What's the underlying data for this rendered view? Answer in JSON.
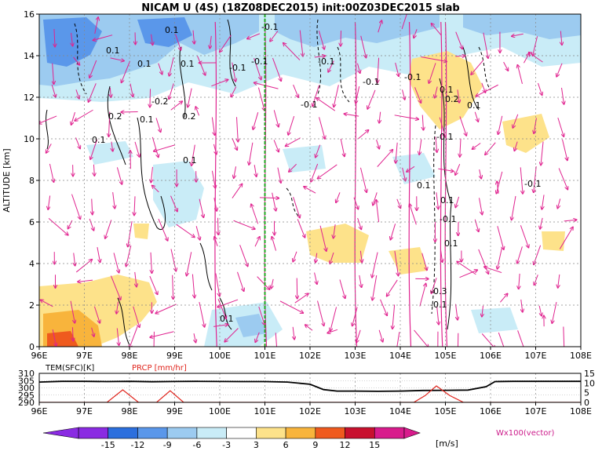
{
  "title": "NICAM U (4S) (18Z08DEC2015) init:00Z03DEC2015 slab",
  "chart_data": [
    {
      "type": "heatmap",
      "title": "NICAM U (4S) (18Z08DEC2015) init:00Z03DEC2015 slab",
      "ylabel": "ALTITUDE [km]",
      "xlim": [
        96,
        108
      ],
      "ylim": [
        0,
        16
      ],
      "x_ticks": [
        "96E",
        "97E",
        "98E",
        "99E",
        "100E",
        "101E",
        "102E",
        "103E",
        "104E",
        "105E",
        "106E",
        "107E",
        "108E"
      ],
      "y_ticks": [
        "0",
        "2",
        "4",
        "6",
        "8",
        "10",
        "12",
        "14",
        "16"
      ],
      "grid": true,
      "marker_line_x": 101,
      "contour_labels": [
        "-0.1",
        "0.1",
        "0.1",
        "0.1",
        "0.1",
        "-0.1",
        "-0.1",
        "-0.2",
        "0.2",
        "0.1",
        "0.2",
        "0.1",
        "-0.1",
        "-0.1",
        "-0.1",
        "-0.1",
        "0.2",
        "0.1",
        "0.1",
        "0.1",
        "-0.1",
        "-0.1",
        "0.1",
        "-0.1",
        "0.1",
        "0.1",
        "-0.3",
        "-0.1",
        "0.1"
      ],
      "colors": {
        "-15": "#8a2be2",
        "-12": "#2c6fde",
        "-9": "#5a97ea",
        "-6": "#9ccbf0",
        "-3": "#c9ecf7",
        "3": "#fde28a",
        "6": "#f8b43c",
        "9": "#ef5a1e",
        "12": "#c8102e",
        "15": "#d81b8c"
      },
      "vector_color": "#e0238f",
      "vector_label": "Wx100(vector)"
    },
    {
      "type": "line",
      "xlim": [
        96,
        108
      ],
      "x_ticks": [
        "96E",
        "97E",
        "98E",
        "99E",
        "100E",
        "101E",
        "102E",
        "103E",
        "104E",
        "105E",
        "106E",
        "107E",
        "108E"
      ],
      "left_axis_label": "TEM(SFC)[K]",
      "left_ticks": [
        "290",
        "295",
        "300",
        "305",
        "310"
      ],
      "left_ylim": [
        290,
        310
      ],
      "right_axis_label": "PRCP [mm/hr]",
      "right_ticks": [
        "0",
        "5",
        "10",
        "15"
      ],
      "right_ylim": [
        0,
        15
      ],
      "series": [
        {
          "name": "TEM(SFC)[K]",
          "color": "#000000",
          "x": [
            96,
            96.5,
            97,
            97.5,
            98,
            98.5,
            99,
            99.5,
            100,
            100.5,
            101,
            101.5,
            102,
            102.3,
            102.6,
            103,
            103.5,
            104,
            104.5,
            105,
            105.5,
            105.9,
            106.1,
            106.5,
            107,
            107.5,
            108
          ],
          "values": [
            304,
            304.5,
            304.5,
            304.3,
            304.5,
            304.2,
            304.4,
            304.5,
            304.4,
            304.3,
            304.3,
            304,
            302.5,
            298.8,
            297.8,
            297.8,
            297.6,
            297.8,
            298.2,
            298.3,
            298.5,
            300.8,
            304.3,
            304.5,
            304.5,
            304.5,
            304.5
          ]
        },
        {
          "name": "PRCP [mm/hr]",
          "color": "#e0231b",
          "x": [
            96,
            97.2,
            97.5,
            97.85,
            98.2,
            98.5,
            98.6,
            98.9,
            99.2,
            99.5,
            104,
            104.3,
            104.55,
            104.8,
            105.1,
            105.4,
            108
          ],
          "values": [
            0,
            0,
            0,
            6.5,
            0,
            0,
            0,
            6,
            0,
            0,
            0,
            0,
            3.5,
            8.5,
            3.5,
            0,
            0
          ]
        }
      ]
    },
    {
      "type": "table",
      "colorbar_levels": [
        "-15",
        "-12",
        "-9",
        "-6",
        "-3",
        "3",
        "6",
        "9",
        "12",
        "15"
      ],
      "colorbar_unit": "[m/s]"
    }
  ]
}
